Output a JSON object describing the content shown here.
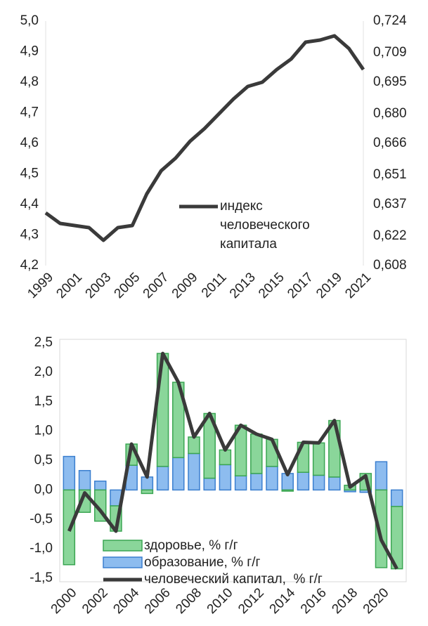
{
  "chart_data": [
    {
      "type": "line",
      "x": [
        1999,
        2000,
        2001,
        2002,
        2003,
        2004,
        2005,
        2006,
        2007,
        2008,
        2009,
        2010,
        2011,
        2012,
        2013,
        2014,
        2015,
        2016,
        2017,
        2018,
        2019,
        2020,
        2021
      ],
      "xlim": [
        1999,
        2021
      ],
      "xticks": [
        1999,
        2001,
        2003,
        2005,
        2007,
        2009,
        2011,
        2013,
        2015,
        2017,
        2019,
        2021
      ],
      "ylim": [
        4.2,
        5.0
      ],
      "yticks": [
        {
          "value": 4.2,
          "label": "4,2"
        },
        {
          "value": 4.3,
          "label": "4,3"
        },
        {
          "value": 4.4,
          "label": "4,4"
        },
        {
          "value": 4.5,
          "label": "4,5"
        },
        {
          "value": 4.6,
          "label": "4,6"
        },
        {
          "value": 4.7,
          "label": "4,7"
        },
        {
          "value": 4.8,
          "label": "4,8"
        },
        {
          "value": 4.9,
          "label": "4,9"
        },
        {
          "value": 5.0,
          "label": "5,0"
        }
      ],
      "y2lim": [
        0.608,
        0.724
      ],
      "y2ticks": [
        {
          "value": 0.608,
          "label": "0,608"
        },
        {
          "value": 0.622,
          "label": "0,622"
        },
        {
          "value": 0.637,
          "label": "0,637"
        },
        {
          "value": 0.651,
          "label": "0,651"
        },
        {
          "value": 0.666,
          "label": "0,666"
        },
        {
          "value": 0.68,
          "label": "0,680"
        },
        {
          "value": 0.695,
          "label": "0,695"
        },
        {
          "value": 0.709,
          "label": "0,709"
        },
        {
          "value": 0.724,
          "label": "0,724"
        }
      ],
      "legend": "center",
      "series": [
        {
          "name": "индекс человеческого капитала",
          "color": "#3a3a3a",
          "axis": "y2",
          "values": [
            0.633,
            0.628,
            0.627,
            0.626,
            0.62,
            0.626,
            0.627,
            0.642,
            0.653,
            0.659,
            0.667,
            0.673,
            0.68,
            0.687,
            0.693,
            0.695,
            0.701,
            0.706,
            0.714,
            0.715,
            0.717,
            0.711,
            0.701
          ]
        }
      ]
    },
    {
      "type": "bar",
      "x": [
        2000,
        2001,
        2002,
        2003,
        2004,
        2005,
        2006,
        2007,
        2008,
        2009,
        2010,
        2011,
        2012,
        2013,
        2014,
        2015,
        2016,
        2017,
        2018,
        2019,
        2020,
        2021
      ],
      "xlim": [
        1999.4,
        2021.6
      ],
      "xticks": [
        2000,
        2002,
        2004,
        2006,
        2008,
        2010,
        2012,
        2014,
        2016,
        2018,
        2020
      ],
      "ylim": [
        -1.5,
        2.5
      ],
      "yticks": [
        {
          "value": -1.5,
          "label": "-1,5"
        },
        {
          "value": -1.0,
          "label": "-1,0"
        },
        {
          "value": -0.5,
          "label": "-0,5"
        },
        {
          "value": 0.0,
          "label": "0,0"
        },
        {
          "value": 0.5,
          "label": "0,5"
        },
        {
          "value": 1.0,
          "label": "1,0"
        },
        {
          "value": 1.5,
          "label": "1,5"
        },
        {
          "value": 2.0,
          "label": "2,0"
        },
        {
          "value": 2.5,
          "label": "2,5"
        }
      ],
      "legend": "lower left",
      "stacked": true,
      "series": [
        {
          "name": "здоровье, % г/г",
          "color": "#8ad69a",
          "type": "bar",
          "values": [
            -1.27,
            -0.38,
            -0.53,
            -0.43,
            0.36,
            -0.06,
            1.92,
            1.28,
            0.28,
            1.1,
            0.25,
            0.86,
            0.67,
            0.46,
            -0.02,
            0.51,
            0.55,
            0.96,
            0.08,
            0.28,
            -1.32,
            -1.06
          ]
        },
        {
          "name": "образование, % г/г",
          "color": "#8dbcef",
          "type": "bar",
          "values": [
            0.57,
            0.33,
            0.15,
            -0.27,
            0.42,
            0.22,
            0.4,
            0.55,
            0.62,
            0.2,
            0.43,
            0.24,
            0.28,
            0.4,
            0.28,
            0.3,
            0.25,
            0.22,
            -0.03,
            -0.04,
            0.48,
            -0.28
          ]
        },
        {
          "name": "человеческий капитал,  % г/г",
          "color": "#3a3a3a",
          "type": "line",
          "values": [
            -0.7,
            -0.05,
            -0.35,
            -0.7,
            0.78,
            0.22,
            2.32,
            1.83,
            0.9,
            1.3,
            0.68,
            1.1,
            0.95,
            0.86,
            0.26,
            0.81,
            0.8,
            1.18,
            0.05,
            0.24,
            -0.85,
            -1.34
          ]
        }
      ]
    }
  ]
}
